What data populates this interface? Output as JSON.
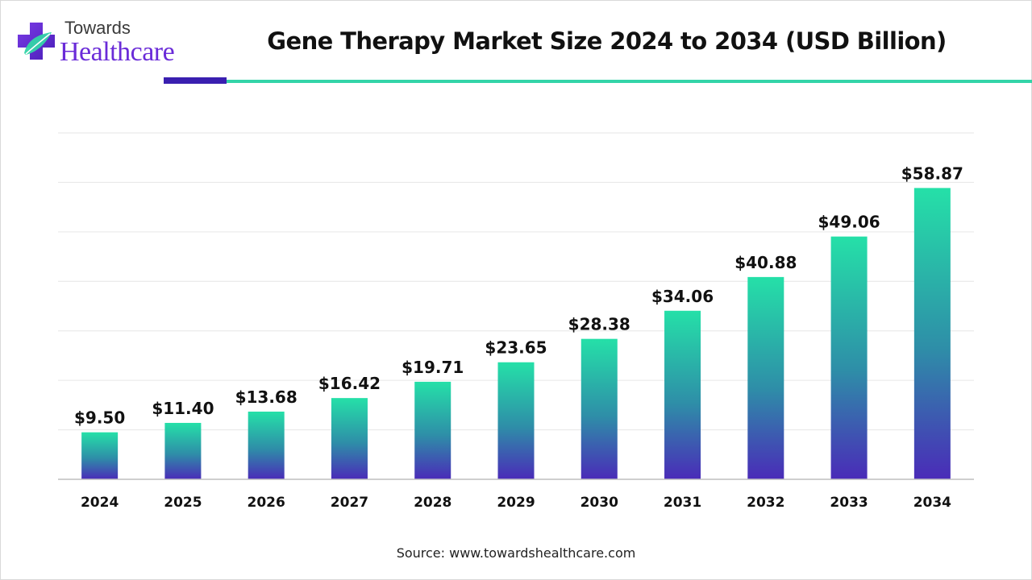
{
  "brand": {
    "name_top": "Towards",
    "name_bottom": "Healthcare",
    "logo_icon": "medical-cross-leaf-icon",
    "colors": {
      "purple": "#6a2bd8",
      "teal": "#33d4a8",
      "dark_band": "#3a1fb0"
    }
  },
  "source_text": "Source: www.towardshealthcare.com",
  "chart_data": {
    "type": "bar",
    "title": "Gene Therapy Market Size 2024 to 2034 (USD Billion)",
    "xlabel": "",
    "ylabel": "",
    "categories": [
      "2024",
      "2025",
      "2026",
      "2027",
      "2028",
      "2029",
      "2030",
      "2031",
      "2032",
      "2033",
      "2034"
    ],
    "values": [
      9.5,
      11.4,
      13.68,
      16.42,
      19.71,
      23.65,
      28.38,
      34.06,
      40.88,
      49.06,
      58.87
    ],
    "data_labels": [
      "$9.50",
      "$11.40",
      "$13.68",
      "$16.42",
      "$19.71",
      "$23.65",
      "$28.38",
      "$34.06",
      "$40.88",
      "$49.06",
      "$58.87"
    ],
    "ylim": [
      0,
      70
    ],
    "grid": true,
    "legend": "none",
    "bar_gradient": {
      "top": "#25e0a8",
      "middle": "#2e8ea8",
      "bottom": "#4a2bb8"
    }
  }
}
